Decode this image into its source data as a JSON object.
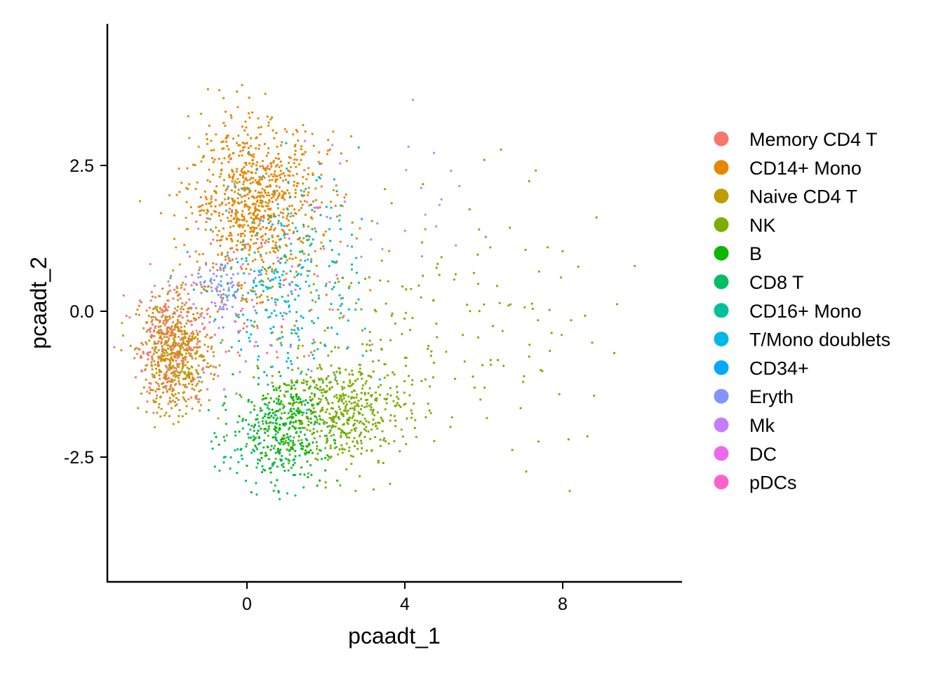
{
  "chart_data": {
    "type": "scatter",
    "title": "",
    "xlabel": "pcaadt_1",
    "ylabel": "pcaadt_2",
    "xlim": [
      -4.5,
      10.8
    ],
    "ylim": [
      -4.6,
      4.9
    ],
    "x_ticks": [
      0,
      4,
      8
    ],
    "x_tick_labels": [
      "0",
      "4",
      "8"
    ],
    "y_ticks": [
      -2.5,
      0.0,
      2.5
    ],
    "y_tick_labels": [
      "-2.5",
      "0.0",
      "2.5"
    ],
    "grid": false,
    "legend_position": "right",
    "series": [
      {
        "name": "Memory CD4 T",
        "color": "#F8766D",
        "clusters": [
          {
            "cx": -1.9,
            "cy": -0.55,
            "sx": 0.45,
            "sy": 0.5,
            "n": 360
          }
        ]
      },
      {
        "name": "CD14+ Mono",
        "color": "#E58700",
        "clusters": [
          {
            "cx": 0.2,
            "cy": 1.95,
            "sx": 0.8,
            "sy": 0.65,
            "n": 720
          },
          {
            "cx": 0.6,
            "cy": 1.1,
            "sx": 1.1,
            "sy": 0.9,
            "n": 180
          }
        ]
      },
      {
        "name": "Naive CD4 T",
        "color": "#C09B00",
        "clusters": [
          {
            "cx": -1.8,
            "cy": -0.8,
            "sx": 0.45,
            "sy": 0.5,
            "n": 420
          }
        ]
      },
      {
        "name": "NK",
        "color": "#7CAE00",
        "clusters": [
          {
            "cx": 2.3,
            "cy": -1.7,
            "sx": 0.9,
            "sy": 0.45,
            "n": 520
          },
          {
            "cx": 3.8,
            "cy": -0.4,
            "sx": 1.5,
            "sy": 1.1,
            "n": 120
          },
          {
            "cx": 7.0,
            "cy": -0.3,
            "sx": 1.4,
            "sy": 1.2,
            "n": 55
          }
        ]
      },
      {
        "name": "B",
        "color": "#0CB702",
        "clusters": [
          {
            "cx": 0.9,
            "cy": -2.0,
            "sx": 0.6,
            "sy": 0.4,
            "n": 240
          }
        ]
      },
      {
        "name": "CD8 T",
        "color": "#00BE67",
        "clusters": [
          {
            "cx": 0.6,
            "cy": -2.2,
            "sx": 0.65,
            "sy": 0.45,
            "n": 160
          }
        ]
      },
      {
        "name": "CD16+ Mono",
        "color": "#00C19A",
        "clusters": [
          {
            "cx": 1.1,
            "cy": 0.9,
            "sx": 0.9,
            "sy": 0.8,
            "n": 130
          }
        ]
      },
      {
        "name": "T/Mono doublets",
        "color": "#00B8E7",
        "clusters": [
          {
            "cx": 1.0,
            "cy": 0.4,
            "sx": 1.0,
            "sy": 0.9,
            "n": 170
          }
        ]
      },
      {
        "name": "CD34+",
        "color": "#00A9FF",
        "clusters": [
          {
            "cx": 1.2,
            "cy": 0.1,
            "sx": 0.8,
            "sy": 0.5,
            "n": 10
          }
        ]
      },
      {
        "name": "Eryth",
        "color": "#8494FF",
        "clusters": [
          {
            "cx": -0.7,
            "cy": 0.35,
            "sx": 0.3,
            "sy": 0.25,
            "n": 70
          }
        ]
      },
      {
        "name": "Mk",
        "color": "#C77CFF",
        "clusters": [
          {
            "cx": 3.6,
            "cy": 1.8,
            "sx": 1.6,
            "sy": 0.9,
            "n": 26
          }
        ]
      },
      {
        "name": "DC",
        "color": "#ED68ED",
        "clusters": [
          {
            "cx": 0.8,
            "cy": 0.5,
            "sx": 1.1,
            "sy": 1.0,
            "n": 45
          }
        ]
      },
      {
        "name": "pDCs",
        "color": "#FF61CC",
        "clusters": [
          {
            "cx": -0.6,
            "cy": -0.3,
            "sx": 0.8,
            "sy": 0.7,
            "n": 40
          }
        ]
      }
    ]
  }
}
